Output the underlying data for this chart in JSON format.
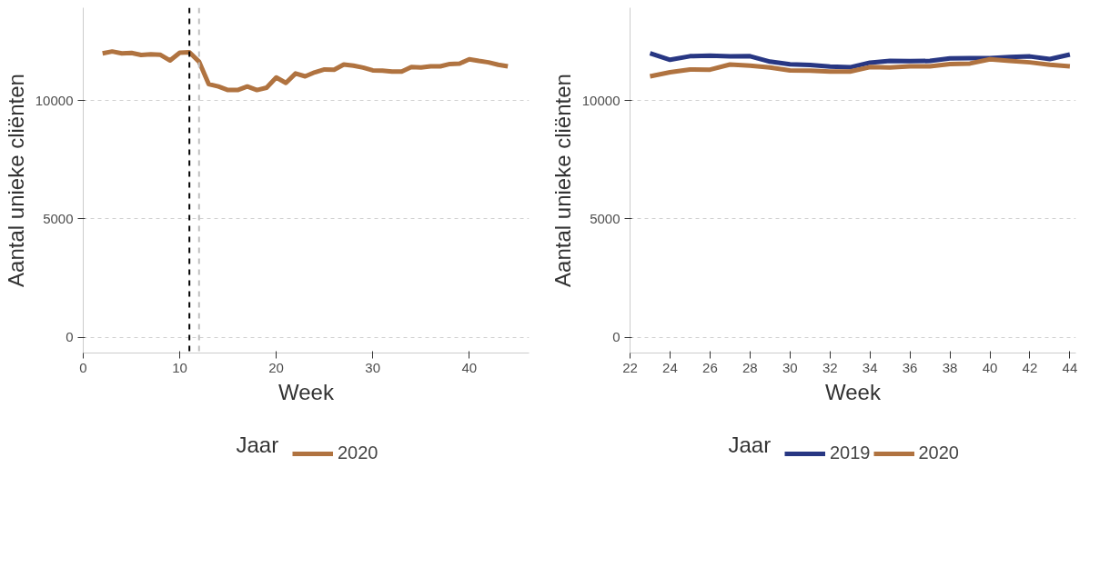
{
  "chart_data": [
    {
      "type": "line",
      "xlabel": "Week",
      "ylabel": "Aantal unieke cliënten",
      "legend_title": "Jaar",
      "legend": "bottom",
      "grid": "y",
      "line_style": "solid",
      "xlim": [
        0,
        46.2
      ],
      "xticks": [
        0,
        10,
        20,
        30,
        40
      ],
      "ylim": [
        -670,
        13930
      ],
      "yticks": [
        0,
        5000,
        10000
      ],
      "ref_lines": [
        {
          "axis": "x",
          "value": 11,
          "color": "#000000",
          "line_style": "dashed"
        },
        {
          "axis": "x",
          "value": 12,
          "color": "#bfbfbf",
          "line_style": "dashed"
        }
      ],
      "series": [
        {
          "name": "2020",
          "color": "#b07340",
          "x": [
            2,
            3,
            4,
            5,
            6,
            7,
            8,
            9,
            10,
            11,
            12,
            13,
            14,
            15,
            16,
            17,
            18,
            19,
            20,
            21,
            22,
            23,
            24,
            25,
            26,
            27,
            28,
            29,
            30,
            31,
            32,
            33,
            34,
            35,
            36,
            37,
            38,
            39,
            40,
            41,
            42,
            43,
            44
          ],
          "values": [
            12000,
            12080,
            12000,
            12020,
            11930,
            11960,
            11940,
            11700,
            12030,
            12050,
            11650,
            10700,
            10600,
            10450,
            10450,
            10600,
            10450,
            10550,
            10980,
            10750,
            11150,
            11030,
            11200,
            11320,
            11310,
            11530,
            11480,
            11400,
            11280,
            11270,
            11230,
            11230,
            11420,
            11400,
            11450,
            11450,
            11550,
            11570,
            11750,
            11680,
            11620,
            11520,
            11450
          ]
        }
      ]
    },
    {
      "type": "line",
      "xlabel": "Week",
      "ylabel": "Aantal unieke cliënten",
      "legend_title": "Jaar",
      "legend": "bottom",
      "grid": "y",
      "line_style": "solid",
      "xlim": [
        22,
        44.3
      ],
      "xticks": [
        22,
        24,
        26,
        28,
        30,
        32,
        34,
        36,
        38,
        40,
        42,
        44
      ],
      "ylim": [
        -670,
        13930
      ],
      "yticks": [
        0,
        5000,
        10000
      ],
      "series": [
        {
          "name": "2019",
          "color": "#283783",
          "x": [
            23,
            24,
            25,
            26,
            27,
            28,
            29,
            30,
            31,
            32,
            33,
            34,
            35,
            36,
            37,
            38,
            39,
            40,
            41,
            42,
            43,
            44
          ],
          "values": [
            12000,
            11730,
            11880,
            11900,
            11870,
            11880,
            11650,
            11540,
            11510,
            11440,
            11410,
            11610,
            11680,
            11670,
            11680,
            11790,
            11800,
            11800,
            11850,
            11870,
            11760,
            11950
          ]
        },
        {
          "name": "2020",
          "color": "#b07340",
          "x": [
            23,
            24,
            25,
            26,
            27,
            28,
            29,
            30,
            31,
            32,
            33,
            34,
            35,
            36,
            37,
            38,
            39,
            40,
            41,
            42,
            43,
            44
          ],
          "values": [
            11030,
            11200,
            11320,
            11310,
            11530,
            11480,
            11400,
            11280,
            11270,
            11230,
            11230,
            11420,
            11400,
            11450,
            11450,
            11550,
            11570,
            11750,
            11680,
            11620,
            11520,
            11450
          ]
        }
      ]
    }
  ]
}
